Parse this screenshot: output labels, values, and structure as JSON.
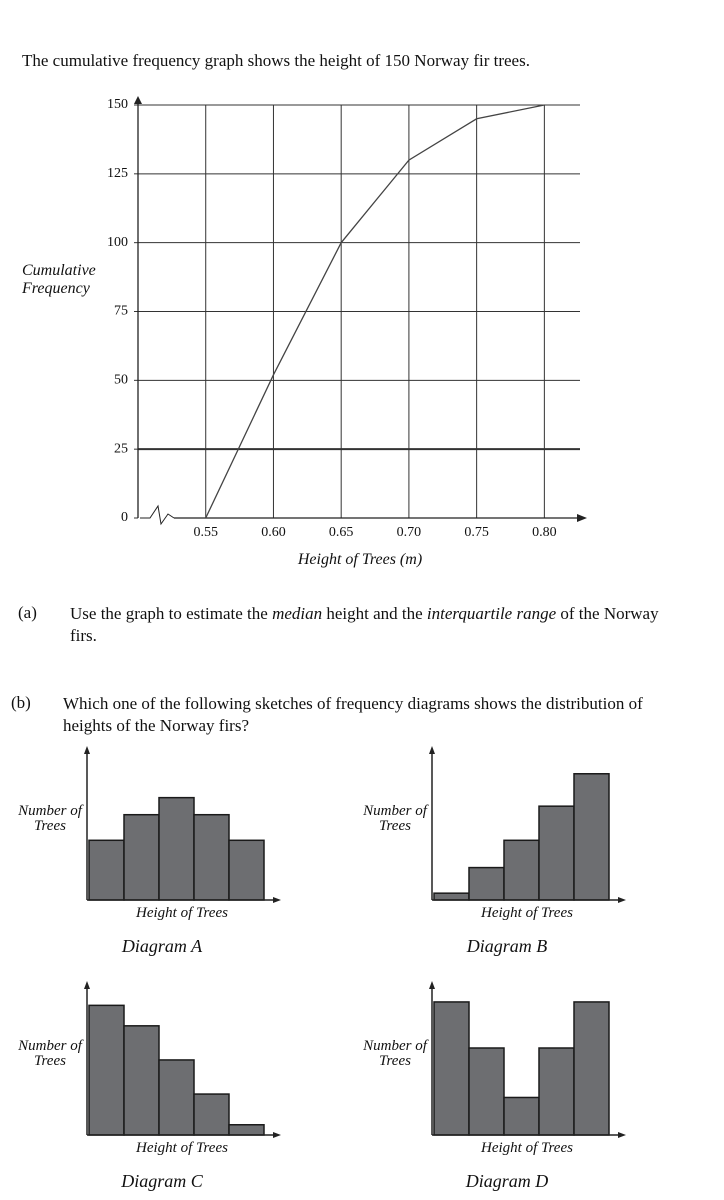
{
  "question": "The cumulative frequency graph shows the height of 150 Norway fir trees.",
  "parts": [
    {
      "label": "(a)",
      "segments": [
        "Use the graph to estimate the ",
        "median",
        " height and the ",
        "interquartile range",
        " of the Norway firs."
      ]
    },
    {
      "label": "(b)",
      "segments": [
        "Which one of the following sketches of frequency diagrams shows the distribution of heights of the Norway firs?"
      ]
    }
  ],
  "chart_data": [
    {
      "type": "line",
      "x_label": "Height of Trees (m)",
      "y_label": "Cumulative Frequency",
      "x": [
        0.55,
        0.6,
        0.65,
        0.7,
        0.75,
        0.8
      ],
      "values": [
        0,
        52,
        100,
        130,
        145,
        150
      ],
      "color": "#444444",
      "xlim": [
        0.5,
        0.83
      ],
      "ylim": [
        0,
        150
      ],
      "xticks": [
        0.55,
        {
          "value": 0.6,
          "label": "0.60"
        },
        0.65,
        {
          "value": 0.7,
          "label": "0.70"
        },
        0.75,
        {
          "value": 0.8,
          "label": "0.80"
        }
      ],
      "yticks": [
        0,
        25,
        50,
        75,
        100,
        125,
        150
      ],
      "grid": true
    },
    {
      "type": "bar",
      "title": "Diagram A",
      "x_label": "Height of Trees",
      "y_label": "Number of Trees",
      "values": [
        3.5,
        5,
        6,
        5,
        3.5
      ],
      "ylim": [
        0,
        8.5
      ],
      "color": "#6d6e71"
    },
    {
      "type": "bar",
      "title": "Diagram B",
      "x_label": "Height of Trees",
      "y_label": "Number of Trees",
      "values": [
        0.4,
        1.9,
        3.5,
        5.5,
        7.4
      ],
      "ylim": [
        0,
        8.5
      ],
      "color": "#6d6e71"
    },
    {
      "type": "bar",
      "title": "Diagram C",
      "x_label": "Height of Trees",
      "y_label": "Number of Trees",
      "values": [
        7.6,
        6.4,
        4.4,
        2.4,
        0.6
      ],
      "ylim": [
        0,
        8.5
      ],
      "color": "#6d6e71"
    },
    {
      "type": "bar",
      "title": "Diagram D",
      "x_label": "Height of Trees",
      "y_label": "Number of Trees",
      "values": [
        7.8,
        5.1,
        2.2,
        5.1,
        7.8
      ],
      "ylim": [
        0,
        8.5
      ],
      "color": "#6d6e71"
    }
  ]
}
